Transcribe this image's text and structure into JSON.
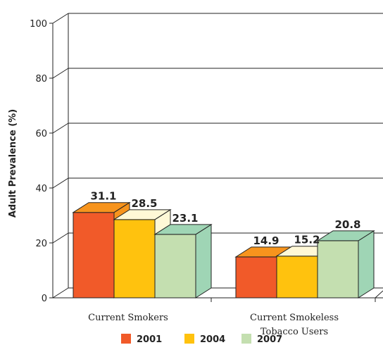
{
  "chart_data": {
    "type": "bar",
    "title": "",
    "xlabel": "",
    "ylabel": "Adult Prevalence (%)",
    "ylim": [
      0,
      100
    ],
    "yticks": [
      0,
      20,
      40,
      60,
      80,
      100
    ],
    "categories": [
      "Current Smokers",
      "Current Smokeless Tobacco Users"
    ],
    "category_lines": [
      [
        "Current Smokers"
      ],
      [
        "Current Smokeless",
        "Tobacco Users"
      ]
    ],
    "series": [
      {
        "name": "2001",
        "values": [
          31.1,
          14.9
        ],
        "colors": {
          "front": "#f15a29",
          "top": "#f7941d",
          "side": "#f7941d"
        }
      },
      {
        "name": "2004",
        "values": [
          28.5,
          15.2
        ],
        "colors": {
          "front": "#ffc20e",
          "top": "#fff8d6",
          "side": "#fff8d6"
        }
      },
      {
        "name": "2007",
        "values": [
          23.1,
          20.8
        ],
        "colors": {
          "front": "#c4dfb0",
          "top": "#9fd5b5",
          "side": "#9fd5b5"
        }
      }
    ],
    "grid": true,
    "legend_position": "bottom-center"
  }
}
